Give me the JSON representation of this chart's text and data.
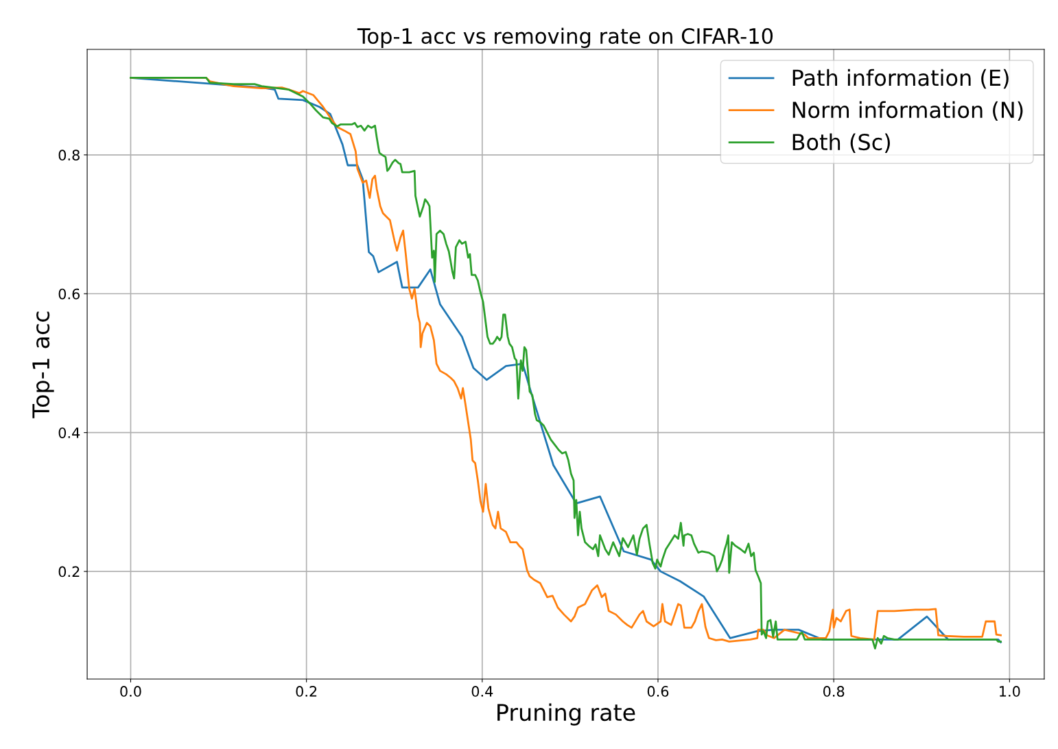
{
  "chart_data": {
    "type": "line",
    "title": "Top-1 acc vs removing rate on CIFAR-10",
    "xlabel": "Pruning rate",
    "ylabel": "Top-1 acc",
    "xlim": [
      -0.0495,
      1.0395
    ],
    "ylim": [
      0.045,
      0.952
    ],
    "xticks": [
      {
        "value": 0,
        "label": "0.0"
      },
      0.2,
      0.4,
      0.6,
      0.8,
      {
        "value": 1,
        "label": "1.0"
      }
    ],
    "yticks": [
      0.2,
      0.4,
      0.6,
      0.8
    ],
    "grid": true,
    "legend": "top right",
    "line_style": "solid",
    "marker": "none",
    "series": [
      {
        "name": "Path information (E)",
        "color": "#1f77b4",
        "x": [
          0,
          0.149,
          0.164,
          0.168,
          0.196,
          0.215,
          0.227,
          0.241,
          0.247,
          0.258,
          0.264,
          0.271,
          0.276,
          0.282,
          0.303,
          0.309,
          0.327,
          0.341,
          0.352,
          0.377,
          0.39,
          0.405,
          0.427,
          0.446,
          0.457,
          0.481,
          0.507,
          0.534,
          0.561,
          0.592,
          0.603,
          0.625,
          0.652,
          0.682,
          0.713,
          0.732,
          0.76,
          0.787,
          0.803,
          0.873,
          0.906,
          0.93,
          0.987,
          0.99
        ],
        "values": [
          0.911,
          0.897,
          0.894,
          0.881,
          0.879,
          0.869,
          0.859,
          0.815,
          0.785,
          0.785,
          0.765,
          0.66,
          0.654,
          0.631,
          0.646,
          0.609,
          0.609,
          0.635,
          0.585,
          0.538,
          0.493,
          0.476,
          0.496,
          0.499,
          0.452,
          0.353,
          0.298,
          0.308,
          0.229,
          0.217,
          0.2,
          0.186,
          0.164,
          0.104,
          0.114,
          0.116,
          0.116,
          0.102,
          0.102,
          0.102,
          0.135,
          0.102,
          0.102,
          0.098
        ]
      },
      {
        "name": "Norm information (N)",
        "color": "#ff7f0e",
        "x": [
          0,
          0.086,
          0.09,
          0.117,
          0.149,
          0.172,
          0.18,
          0.192,
          0.196,
          0.208,
          0.219,
          0.227,
          0.235,
          0.243,
          0.25,
          0.256,
          0.258,
          0.264,
          0.268,
          0.272,
          0.275,
          0.278,
          0.28,
          0.284,
          0.287,
          0.291,
          0.295,
          0.3,
          0.303,
          0.307,
          0.31,
          0.313,
          0.317,
          0.32,
          0.323,
          0.327,
          0.329,
          0.33,
          0.332,
          0.337,
          0.341,
          0.345,
          0.348,
          0.352,
          0.359,
          0.364,
          0.368,
          0.372,
          0.376,
          0.378,
          0.381,
          0.384,
          0.387,
          0.389,
          0.392,
          0.395,
          0.398,
          0.401,
          0.404,
          0.407,
          0.412,
          0.415,
          0.418,
          0.421,
          0.427,
          0.432,
          0.439,
          0.442,
          0.446,
          0.451,
          0.454,
          0.459,
          0.466,
          0.47,
          0.474,
          0.48,
          0.486,
          0.493,
          0.501,
          0.505,
          0.509,
          0.517,
          0.525,
          0.531,
          0.536,
          0.54,
          0.544,
          0.552,
          0.56,
          0.565,
          0.57,
          0.579,
          0.583,
          0.587,
          0.595,
          0.603,
          0.605,
          0.608,
          0.615,
          0.623,
          0.626,
          0.63,
          0.638,
          0.642,
          0.646,
          0.65,
          0.654,
          0.658,
          0.666,
          0.673,
          0.681,
          0.697,
          0.705,
          0.713,
          0.714,
          0.72,
          0.724,
          0.732,
          0.744,
          0.767,
          0.771,
          0.791,
          0.795,
          0.799,
          0.8,
          0.803,
          0.808,
          0.814,
          0.818,
          0.82,
          0.83,
          0.846,
          0.85,
          0.869,
          0.893,
          0.908,
          0.916,
          0.919,
          0.928,
          0.948,
          0.969,
          0.973,
          0.983,
          0.985,
          0.99
        ],
        "values": [
          0.911,
          0.911,
          0.906,
          0.899,
          0.896,
          0.897,
          0.894,
          0.889,
          0.892,
          0.886,
          0.869,
          0.854,
          0.84,
          0.835,
          0.83,
          0.805,
          0.78,
          0.76,
          0.763,
          0.738,
          0.765,
          0.77,
          0.751,
          0.726,
          0.716,
          0.711,
          0.706,
          0.677,
          0.662,
          0.681,
          0.691,
          0.657,
          0.607,
          0.593,
          0.607,
          0.568,
          0.558,
          0.523,
          0.543,
          0.558,
          0.553,
          0.533,
          0.499,
          0.489,
          0.484,
          0.479,
          0.474,
          0.464,
          0.449,
          0.464,
          0.44,
          0.415,
          0.39,
          0.36,
          0.356,
          0.331,
          0.301,
          0.286,
          0.326,
          0.291,
          0.267,
          0.262,
          0.286,
          0.262,
          0.257,
          0.242,
          0.242,
          0.237,
          0.232,
          0.202,
          0.193,
          0.188,
          0.183,
          0.173,
          0.163,
          0.165,
          0.148,
          0.138,
          0.128,
          0.135,
          0.148,
          0.153,
          0.173,
          0.18,
          0.163,
          0.168,
          0.143,
          0.138,
          0.128,
          0.123,
          0.119,
          0.138,
          0.143,
          0.128,
          0.121,
          0.128,
          0.153,
          0.128,
          0.123,
          0.153,
          0.151,
          0.119,
          0.119,
          0.128,
          0.143,
          0.153,
          0.12,
          0.104,
          0.101,
          0.102,
          0.099,
          0.101,
          0.102,
          0.104,
          0.116,
          0.116,
          0.108,
          0.104,
          0.116,
          0.109,
          0.104,
          0.104,
          0.114,
          0.145,
          0.119,
          0.133,
          0.128,
          0.143,
          0.145,
          0.107,
          0.104,
          0.102,
          0.143,
          0.143,
          0.145,
          0.145,
          0.146,
          0.108,
          0.107,
          0.106,
          0.106,
          0.128,
          0.128,
          0.109,
          0.108
        ]
      },
      {
        "name": "Both (Sc)",
        "color": "#2ca02c",
        "x": [
          0,
          0.086,
          0.09,
          0.117,
          0.141,
          0.149,
          0.18,
          0.196,
          0.204,
          0.211,
          0.219,
          0.226,
          0.229,
          0.235,
          0.239,
          0.247,
          0.252,
          0.255,
          0.258,
          0.262,
          0.266,
          0.27,
          0.274,
          0.278,
          0.28,
          0.282,
          0.283,
          0.286,
          0.29,
          0.292,
          0.294,
          0.298,
          0.301,
          0.305,
          0.307,
          0.309,
          0.317,
          0.323,
          0.324,
          0.329,
          0.333,
          0.335,
          0.338,
          0.34,
          0.343,
          0.345,
          0.346,
          0.348,
          0.352,
          0.356,
          0.359,
          0.362,
          0.364,
          0.366,
          0.368,
          0.37,
          0.374,
          0.377,
          0.381,
          0.384,
          0.386,
          0.388,
          0.392,
          0.395,
          0.398,
          0.401,
          0.403,
          0.406,
          0.409,
          0.412,
          0.415,
          0.417,
          0.42,
          0.422,
          0.424,
          0.426,
          0.429,
          0.431,
          0.434,
          0.437,
          0.439,
          0.441,
          0.444,
          0.446,
          0.448,
          0.45,
          0.454,
          0.457,
          0.46,
          0.462,
          0.466,
          0.47,
          0.474,
          0.478,
          0.481,
          0.484,
          0.487,
          0.491,
          0.495,
          0.498,
          0.501,
          0.504,
          0.505,
          0.507,
          0.509,
          0.511,
          0.513,
          0.517,
          0.522,
          0.526,
          0.529,
          0.532,
          0.534,
          0.537,
          0.54,
          0.544,
          0.549,
          0.556,
          0.56,
          0.566,
          0.572,
          0.576,
          0.579,
          0.583,
          0.587,
          0.59,
          0.594,
          0.597,
          0.599,
          0.603,
          0.605,
          0.609,
          0.613,
          0.619,
          0.623,
          0.626,
          0.629,
          0.63,
          0.634,
          0.638,
          0.641,
          0.646,
          0.65,
          0.658,
          0.664,
          0.667,
          0.67,
          0.673,
          0.676,
          0.678,
          0.68,
          0.681,
          0.684,
          0.688,
          0.694,
          0.699,
          0.703,
          0.706,
          0.709,
          0.711,
          0.714,
          0.717,
          0.718,
          0.72,
          0.723,
          0.725,
          0.728,
          0.731,
          0.734,
          0.736,
          0.744,
          0.758,
          0.762,
          0.764,
          0.767,
          0.822,
          0.844,
          0.847,
          0.85,
          0.854,
          0.857,
          0.861,
          0.869,
          0.985,
          0.987,
          0.99
        ],
        "values": [
          0.911,
          0.911,
          0.904,
          0.902,
          0.902,
          0.899,
          0.894,
          0.884,
          0.874,
          0.864,
          0.854,
          0.852,
          0.846,
          0.841,
          0.844,
          0.844,
          0.844,
          0.846,
          0.84,
          0.842,
          0.835,
          0.842,
          0.839,
          0.842,
          0.825,
          0.81,
          0.803,
          0.8,
          0.797,
          0.777,
          0.78,
          0.789,
          0.793,
          0.788,
          0.787,
          0.775,
          0.775,
          0.777,
          0.741,
          0.711,
          0.726,
          0.736,
          0.731,
          0.726,
          0.652,
          0.662,
          0.617,
          0.686,
          0.691,
          0.686,
          0.672,
          0.661,
          0.647,
          0.632,
          0.622,
          0.667,
          0.677,
          0.672,
          0.675,
          0.652,
          0.657,
          0.627,
          0.627,
          0.619,
          0.602,
          0.588,
          0.568,
          0.538,
          0.528,
          0.528,
          0.533,
          0.538,
          0.533,
          0.538,
          0.57,
          0.57,
          0.538,
          0.528,
          0.523,
          0.507,
          0.504,
          0.449,
          0.504,
          0.489,
          0.523,
          0.519,
          0.459,
          0.454,
          0.427,
          0.418,
          0.415,
          0.41,
          0.4,
          0.39,
          0.385,
          0.38,
          0.375,
          0.37,
          0.372,
          0.36,
          0.341,
          0.331,
          0.277,
          0.303,
          0.252,
          0.286,
          0.262,
          0.242,
          0.236,
          0.232,
          0.239,
          0.222,
          0.252,
          0.242,
          0.232,
          0.224,
          0.242,
          0.222,
          0.248,
          0.235,
          0.252,
          0.224,
          0.247,
          0.262,
          0.267,
          0.242,
          0.212,
          0.204,
          0.217,
          0.207,
          0.217,
          0.232,
          0.24,
          0.252,
          0.247,
          0.27,
          0.237,
          0.252,
          0.254,
          0.252,
          0.24,
          0.227,
          0.229,
          0.227,
          0.222,
          0.2,
          0.207,
          0.217,
          0.232,
          0.24,
          0.252,
          0.198,
          0.242,
          0.237,
          0.232,
          0.227,
          0.24,
          0.222,
          0.227,
          0.202,
          0.193,
          0.183,
          0.109,
          0.114,
          0.104,
          0.128,
          0.13,
          0.106,
          0.128,
          0.102,
          0.102,
          0.102,
          0.111,
          0.112,
          0.102,
          0.102,
          0.102,
          0.089,
          0.104,
          0.096,
          0.107,
          0.104,
          0.102,
          0.102,
          0.099,
          0.099
        ]
      }
    ]
  }
}
